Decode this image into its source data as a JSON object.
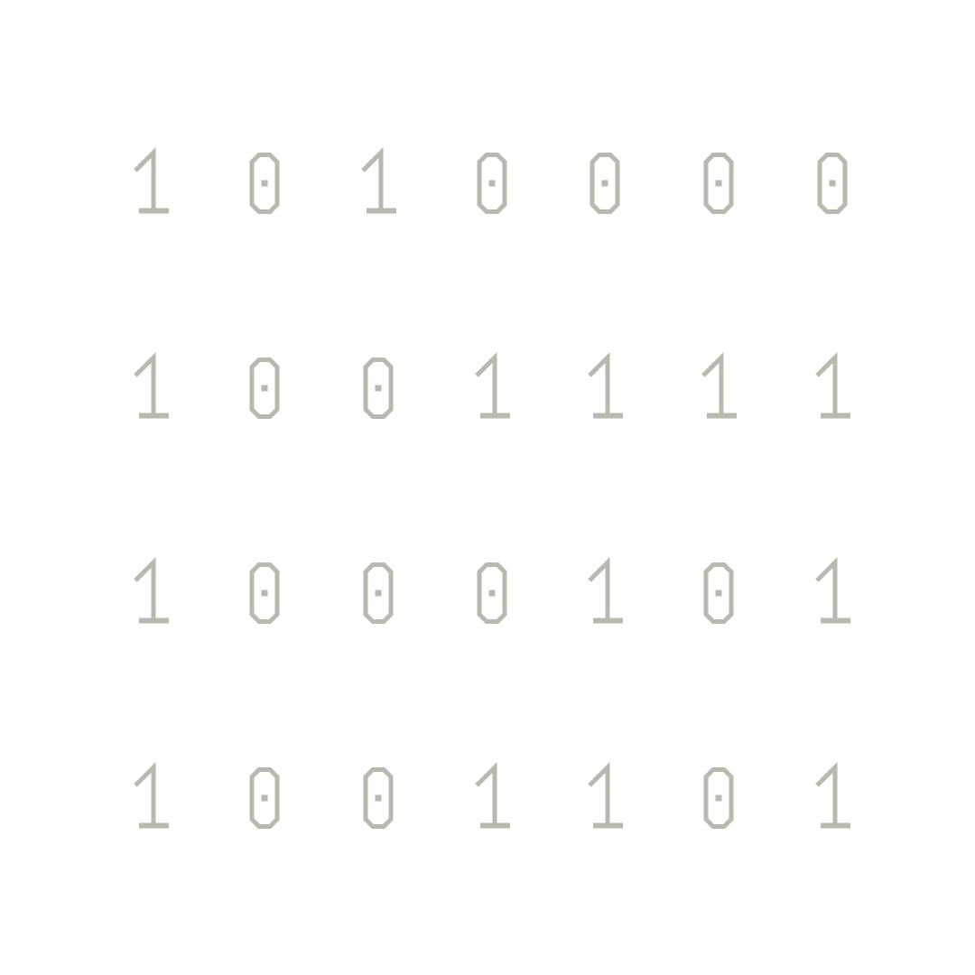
{
  "glyph_color": "#b9b9af",
  "background_color": "#ffffff",
  "rows": [
    [
      "1",
      "0",
      "1",
      "0",
      "0",
      "0",
      "0"
    ],
    [
      "1",
      "0",
      "0",
      "1",
      "1",
      "1",
      "1"
    ],
    [
      "1",
      "0",
      "0",
      "0",
      "1",
      "0",
      "1"
    ],
    [
      "1",
      "0",
      "0",
      "1",
      "1",
      "0",
      "1"
    ]
  ]
}
